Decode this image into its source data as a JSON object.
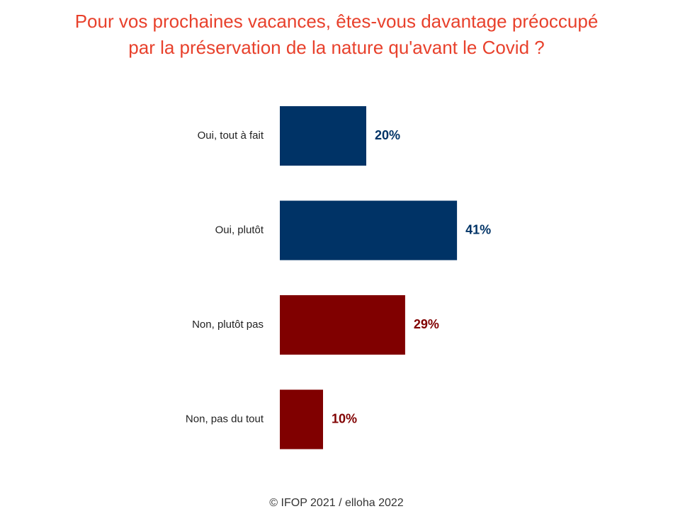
{
  "title": {
    "line1": "Pour vos prochaines vacances, êtes-vous davantage préoccupé",
    "line2": "par la préservation de la nature qu'avant le Covid ?"
  },
  "footer": "© IFOP 2021 / elloha 2022",
  "colors": {
    "title": "#e8412c",
    "yes": "#003366",
    "no": "#800000"
  },
  "chart_data": {
    "type": "bar",
    "orientation": "horizontal",
    "categories": [
      "Oui, tout à fait",
      "Oui, plutôt",
      "Non, plutôt pas",
      "Non, pas du tout"
    ],
    "values": [
      20,
      41,
      29,
      10
    ],
    "value_labels": [
      "20%",
      "41%",
      "29%",
      "10%"
    ],
    "bar_colors": [
      "#003366",
      "#003366",
      "#800000",
      "#800000"
    ],
    "unit": "%",
    "xlim": [
      0,
      50
    ],
    "grid": false,
    "legend": "none"
  }
}
